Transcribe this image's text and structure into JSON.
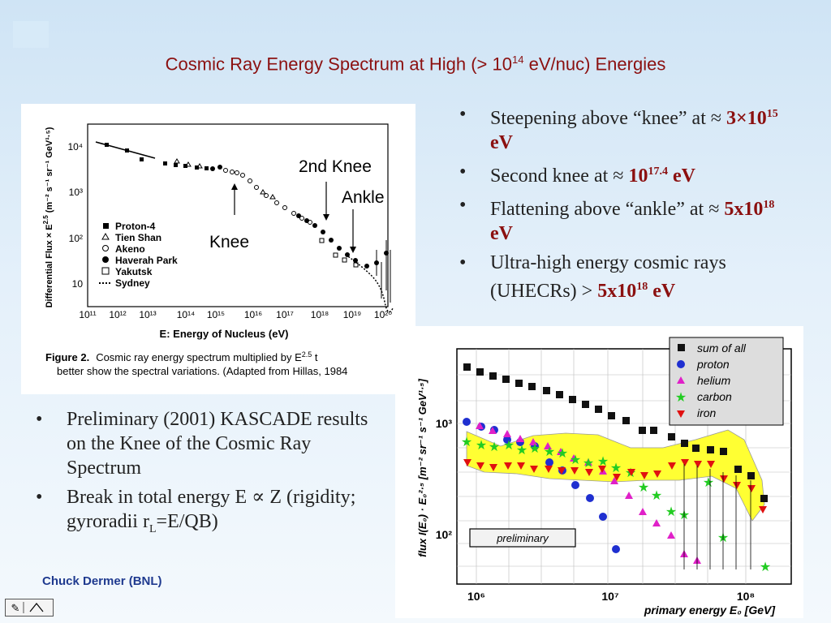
{
  "title": {
    "pre": "Cosmic Ray Energy Spectrum at High (> 10",
    "sup": "14",
    "post": " eV/nuc) Energies"
  },
  "right_bullets": [
    {
      "text": "Steepening above “knee” at ≈ ",
      "value": "3×10",
      "sup": "15",
      "unit": " eV"
    },
    {
      "text": "Second knee at ≈ ",
      "value": "10",
      "sup": "17.4",
      "unit": " eV"
    },
    {
      "text": "Flattening above “ankle” at ≈ ",
      "value": "5x10",
      "sup": "18",
      "unit": " eV"
    },
    {
      "text": "Ultra-high energy cosmic rays (UHECRs) > ",
      "value": "5x10",
      "sup": "18",
      "unit": " eV"
    }
  ],
  "left_bullets": [
    {
      "text": "Preliminary (2001) KASCADE results on the Knee of the Cosmic Ray Spectrum"
    },
    {
      "pre": "Break in total energy  E ∝ Z (rigidity; gyroradii r",
      "sub": "L",
      "post": "=E/QB)"
    }
  ],
  "author": "Chuck Dermer (BNL)",
  "figure1": {
    "ylabel": "Differential Flux × E",
    "ylabel_sup": "2.5",
    "ylabel_units": "(m⁻² s⁻¹ sr⁻¹ GeV¹·⁵)",
    "xlabel": "E: Energy of Nucleus (eV)",
    "yticks": [
      "10⁴",
      "10³",
      "10²",
      "10"
    ],
    "xticks": [
      "10¹¹",
      "10¹²",
      "10¹³",
      "10¹⁴",
      "10¹⁵",
      "10¹⁶",
      "10¹⁷",
      "10¹⁸",
      "10¹⁹",
      "10²⁰"
    ],
    "legend": [
      "Proton-4",
      "Tien Shan",
      "Akeno",
      "Haverah Park",
      "Yakutsk",
      "Sydney"
    ],
    "annotations": {
      "knee": "Knee",
      "second_knee": "2nd Knee",
      "ankle": "Ankle"
    },
    "caption_label": "Figure 2.",
    "caption_line1": "Cosmic ray energy spectrum multiplied by E",
    "caption_sup": "2.5",
    "caption_line1_end": " t",
    "caption_line2": "better show the spectral variations. (Adapted from Hillas, 1984"
  },
  "figure2": {
    "ylabel": "flux I(E₀) · E₀²·⁵ [m⁻² sr⁻¹ s⁻¹ GeV¹·⁵]",
    "xlabel": "primary energy E₀  [GeV]",
    "yticks": [
      "10³",
      "10²"
    ],
    "xticks": [
      "10⁶",
      "10⁷",
      "10⁸"
    ],
    "legend": [
      "sum of all",
      "proton",
      "helium",
      "carbon",
      "iron"
    ],
    "badge": "preliminary",
    "colors": {
      "sum": "#111111",
      "proton": "#1f2fd0",
      "helium": "#e020c8",
      "carbon": "#22cc22",
      "iron": "#e01010",
      "band": "#ffff33"
    }
  }
}
